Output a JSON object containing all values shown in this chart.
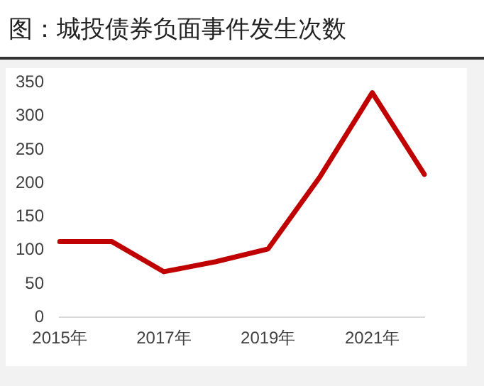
{
  "chart_data": {
    "type": "line",
    "title": "图：城投债券负面事件发生次数",
    "categories": [
      "2015年",
      null,
      "2017年",
      null,
      "2019年",
      null,
      "2021年",
      null
    ],
    "series": [
      {
        "color": "#c00000",
        "values": [
          113,
          113,
          68,
          83,
          102,
          210,
          335,
          213
        ]
      }
    ],
    "ylim": [
      0,
      350
    ],
    "yticks": [
      0,
      50,
      100,
      150,
      200,
      250,
      300,
      350
    ],
    "grid": false,
    "legend": false,
    "marker": "none",
    "line_style": "solid"
  }
}
